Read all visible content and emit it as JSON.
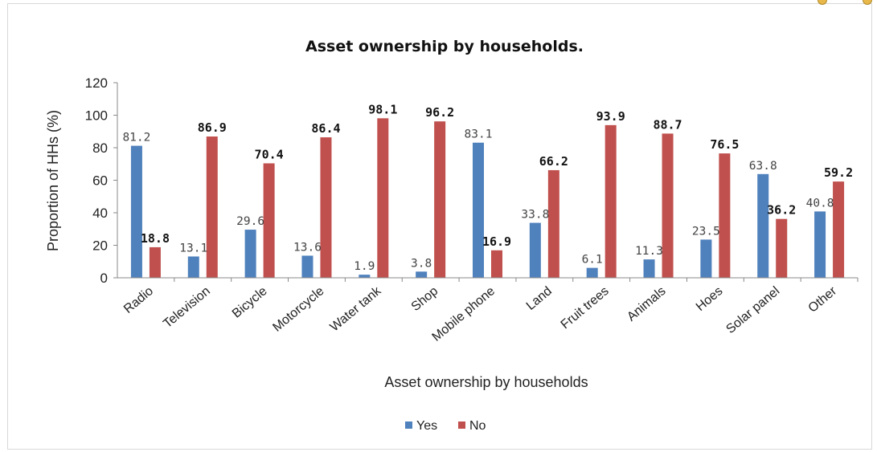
{
  "chart_data": {
    "type": "bar",
    "title": "Asset ownership by households.",
    "xlabel": "Asset ownership by households",
    "ylabel": "Proportion of HHs (%)",
    "ylim": [
      0,
      120
    ],
    "yticks": [
      0,
      20,
      40,
      60,
      80,
      100,
      120
    ],
    "grid": false,
    "legend_position": "bottom",
    "categories": [
      "Radio",
      "Television",
      "Bicycle",
      "Motorcycle",
      "Water tank",
      "Shop",
      "Mobile phone",
      "Land",
      "Fruit trees",
      "Animals",
      "Hoes",
      "Solar panel",
      "Other"
    ],
    "series": [
      {
        "name": "Yes",
        "color": "#4f81bd",
        "values": [
          81.2,
          13.1,
          29.6,
          13.6,
          1.9,
          3.8,
          83.1,
          33.8,
          6.1,
          11.3,
          23.5,
          63.8,
          40.8
        ]
      },
      {
        "name": "No",
        "color": "#c0504d",
        "values": [
          18.8,
          86.9,
          70.4,
          86.4,
          98.1,
          96.2,
          16.9,
          66.2,
          93.9,
          88.7,
          76.5,
          36.2,
          59.2
        ]
      }
    ]
  }
}
